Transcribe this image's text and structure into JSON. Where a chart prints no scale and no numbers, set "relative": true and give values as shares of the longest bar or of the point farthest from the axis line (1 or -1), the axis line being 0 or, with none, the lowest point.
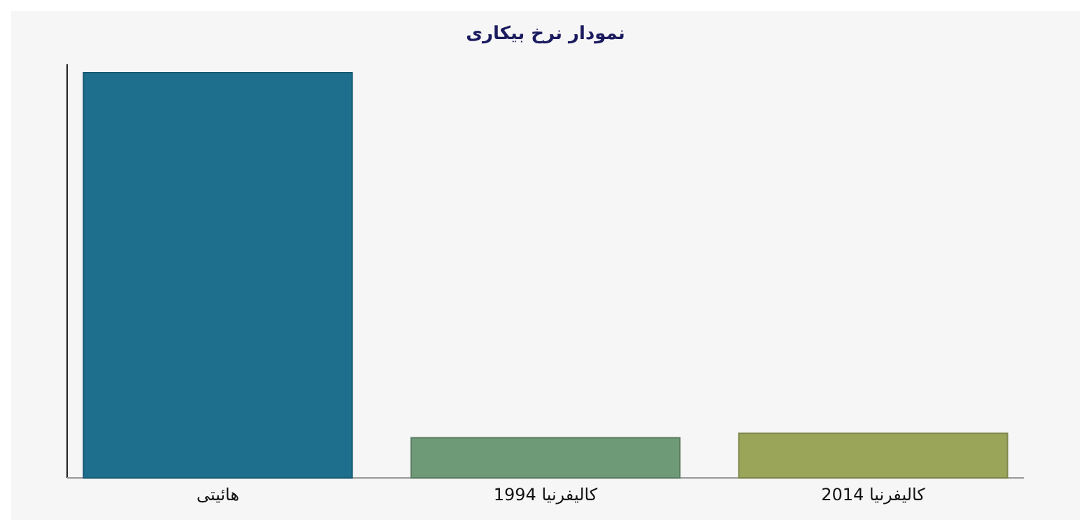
{
  "chart_data": {
    "type": "bar",
    "title": "نمودار نرخ بیکاری",
    "relative": true,
    "categories": [
      "هائیتی",
      "کالیفرنیا 1994",
      "کالیفرنیا 2014"
    ],
    "values": [
      1,
      0.099,
      0.11
    ],
    "colors": [
      "#1e6f8e",
      "#6f9a78",
      "#9aa55a"
    ]
  }
}
